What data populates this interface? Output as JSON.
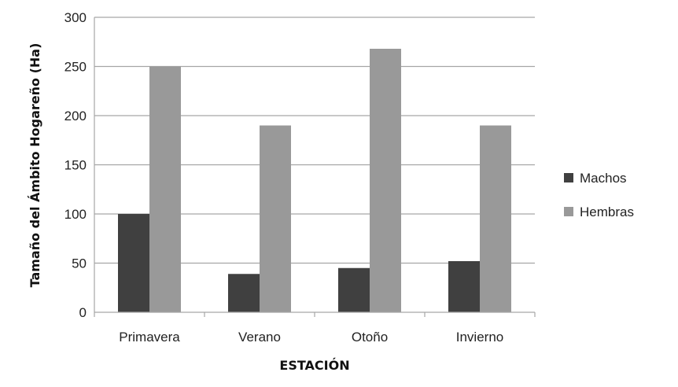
{
  "chart_data": {
    "type": "bar",
    "title": "",
    "xlabel": "ESTACIÓN",
    "ylabel": "Tamaño del Ámbito Hogareño (Ha)",
    "categories": [
      "Primavera",
      "Verano",
      "Otoño",
      "Invierno"
    ],
    "ylim": [
      0,
      300
    ],
    "yticks": [
      0,
      50,
      100,
      150,
      200,
      250,
      300
    ],
    "grid": true,
    "legend_position": "right",
    "series": [
      {
        "name": "Machos",
        "values": [
          100,
          39,
          45,
          52
        ],
        "color": "#404040"
      },
      {
        "name": "Hembras",
        "values": [
          250,
          190,
          268,
          190
        ],
        "color": "#999999"
      }
    ]
  }
}
